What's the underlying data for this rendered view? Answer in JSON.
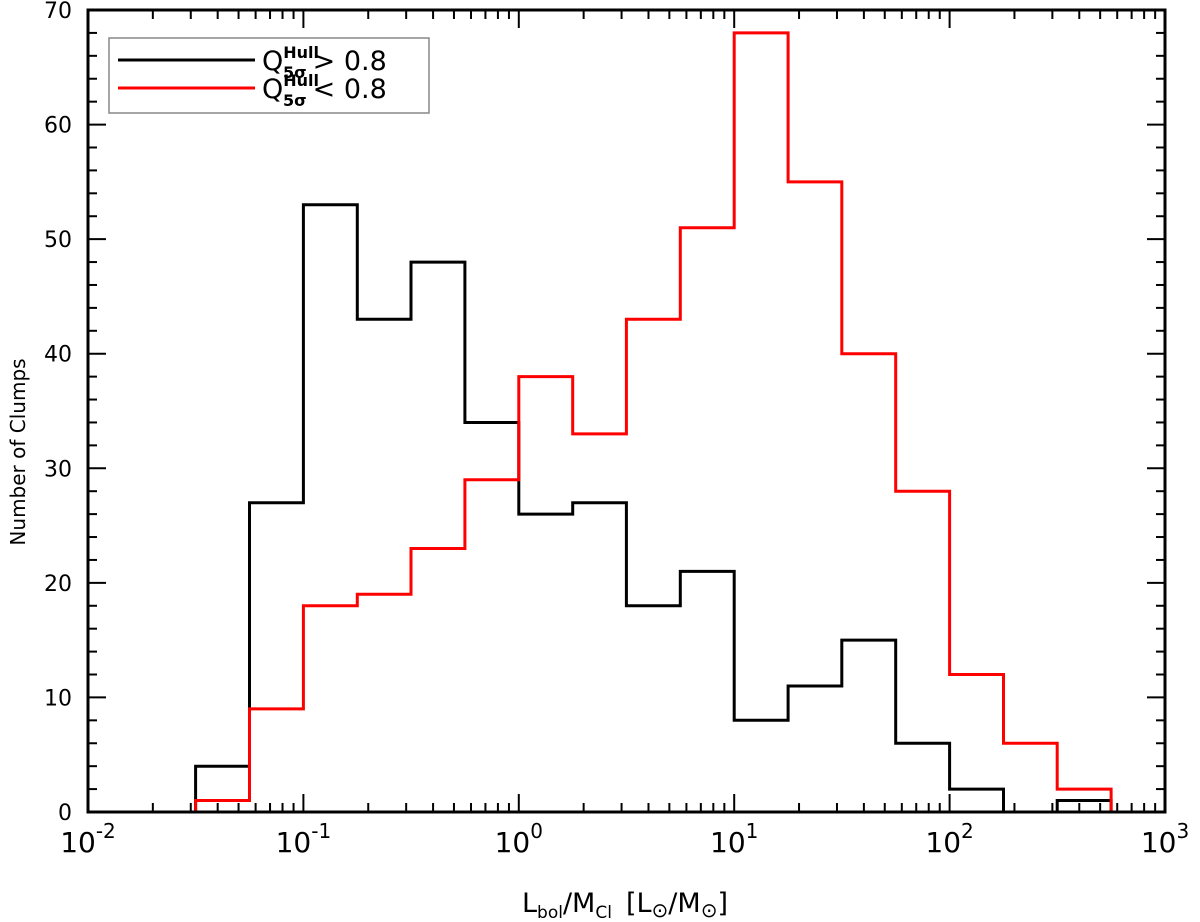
{
  "chart_data": {
    "type": "histogram",
    "xscale": "log",
    "xlim": [
      0.01,
      1000
    ],
    "ylim": [
      0,
      70
    ],
    "grid": false,
    "legend_position": "top-left",
    "ylabel": "Number of Clumps",
    "xlabel": {
      "a": "L",
      "a_sub": "bol",
      "b": "/M",
      "b_sub": "Cl",
      "c": "[L",
      "d": "/M",
      "e": "]"
    },
    "xticks": [
      {
        "base": "10",
        "exp": "-2",
        "value": 0.01
      },
      {
        "base": "10",
        "exp": "-1",
        "value": 0.1
      },
      {
        "base": "10",
        "exp": "0",
        "value": 1
      },
      {
        "base": "10",
        "exp": "1",
        "value": 10
      },
      {
        "base": "10",
        "exp": "2",
        "value": 100
      },
      {
        "base": "10",
        "exp": "3",
        "value": 1000
      }
    ],
    "yticks": [
      "0",
      "10",
      "20",
      "30",
      "40",
      "50",
      "60",
      "70"
    ],
    "bin_edges": [
      0.01,
      0.0178,
      0.0316,
      0.0562,
      0.1,
      0.178,
      0.316,
      0.562,
      1,
      1.78,
      3.16,
      5.62,
      10,
      17.8,
      31.6,
      56.2,
      100,
      178,
      316,
      562,
      1000
    ],
    "series": [
      {
        "name": {
          "q": "Q",
          "sup": "Hull",
          "sub": "5σ",
          "rel": "> 0.8"
        },
        "color": "#000000",
        "values": [
          0,
          0,
          4,
          27,
          53,
          43,
          48,
          34,
          26,
          27,
          18,
          21,
          8,
          11,
          15,
          6,
          2,
          0,
          1,
          0
        ]
      },
      {
        "name": {
          "q": "Q",
          "sup": "Hull",
          "sub": "5σ",
          "rel": "< 0.8"
        },
        "color": "#ff0000",
        "values": [
          0,
          0,
          1,
          9,
          18,
          19,
          23,
          29,
          38,
          33,
          43,
          51,
          68,
          55,
          40,
          28,
          12,
          6,
          2,
          0
        ]
      }
    ]
  }
}
